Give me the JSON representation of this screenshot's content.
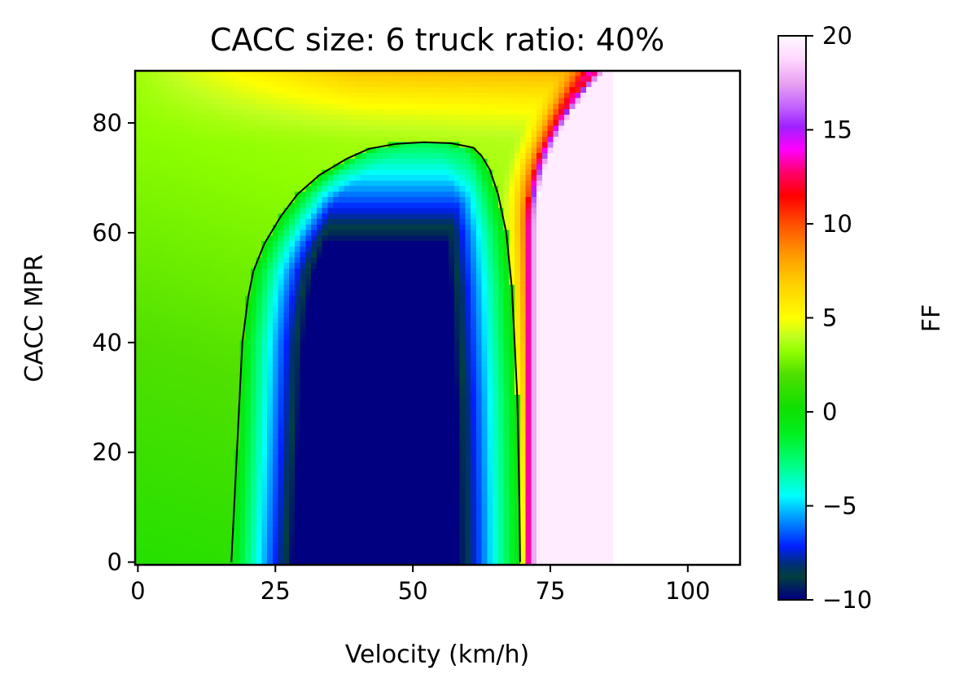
{
  "chart_data": {
    "type": "heatmap",
    "title": "CACC size: 6 truck ratio: 40%",
    "xlabel": "Velocity (km/h)",
    "ylabel": "CACC MPR",
    "xlim": [
      -0.5,
      109.5
    ],
    "ylim": [
      -0.5,
      89.5
    ],
    "x_ticks": [
      0,
      25,
      50,
      75,
      100
    ],
    "x_tick_labels": [
      "0",
      "25",
      "50",
      "75",
      "100"
    ],
    "y_ticks": [
      0,
      20,
      40,
      60,
      80
    ],
    "y_tick_labels": [
      "0",
      "20",
      "40",
      "60",
      "80"
    ],
    "colorbar": {
      "label": "FF",
      "range": [
        -10,
        20
      ],
      "ticks": [
        -10,
        -5,
        0,
        5,
        10,
        15,
        20
      ],
      "tick_labels": [
        "−10",
        "−5",
        "0",
        "5",
        "10",
        "15",
        "20"
      ],
      "colormap": "gist_ncar",
      "stops": [
        [
          -10,
          "#000080"
        ],
        [
          -8.8,
          "#004040"
        ],
        [
          -8.2,
          "#003070"
        ],
        [
          -7.2,
          "#0020ff"
        ],
        [
          -5.5,
          "#00a8ff"
        ],
        [
          -4.5,
          "#00ffff"
        ],
        [
          -2.8,
          "#00ff80"
        ],
        [
          -1.2,
          "#00f020"
        ],
        [
          0.2,
          "#10e000"
        ],
        [
          2.0,
          "#50e000"
        ],
        [
          3.2,
          "#90ff00"
        ],
        [
          4.0,
          "#c0ff20"
        ],
        [
          5.0,
          "#ffff00"
        ],
        [
          6.8,
          "#ffd000"
        ],
        [
          8.2,
          "#ffa000"
        ],
        [
          10.0,
          "#ff5000"
        ],
        [
          11.5,
          "#ff0000"
        ],
        [
          12.8,
          "#ff0070"
        ],
        [
          14.0,
          "#ff00ff"
        ],
        [
          15.2,
          "#a020ff"
        ],
        [
          16.2,
          "#c060ff"
        ],
        [
          17.5,
          "#e8a0f0"
        ],
        [
          18.8,
          "#ffd8ff"
        ],
        [
          20.0,
          "#fff8ff"
        ]
      ]
    },
    "contour": {
      "level": 0,
      "color": "#000000",
      "points": [
        [
          17,
          0
        ],
        [
          17.5,
          10
        ],
        [
          18,
          20
        ],
        [
          18.5,
          30
        ],
        [
          19,
          40
        ],
        [
          20,
          48
        ],
        [
          21,
          53
        ],
        [
          23,
          58
        ],
        [
          26,
          63
        ],
        [
          29,
          67
        ],
        [
          33,
          70.5
        ],
        [
          38,
          73.5
        ],
        [
          42,
          75.3
        ],
        [
          47,
          76.2
        ],
        [
          52,
          76.5
        ],
        [
          57,
          76.3
        ],
        [
          61,
          75.5
        ],
        [
          62.5,
          74
        ],
        [
          64,
          71.5
        ],
        [
          65.5,
          67
        ],
        [
          67,
          60
        ],
        [
          68,
          50
        ],
        [
          68.5,
          40
        ],
        [
          69,
          30
        ],
        [
          69.2,
          20
        ],
        [
          69.4,
          10
        ],
        [
          69.5,
          0
        ]
      ]
    },
    "nan_region": {
      "velocity_above": 86,
      "color": "#ffffff"
    }
  }
}
